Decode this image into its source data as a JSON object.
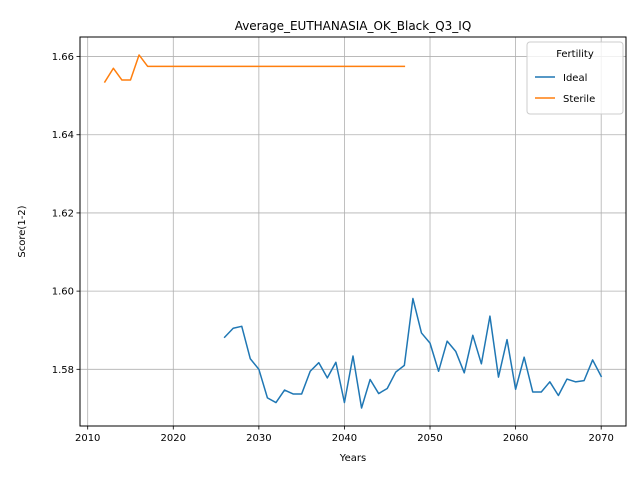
{
  "chart_data": {
    "type": "line",
    "title": "Average_EUTHANASIA_OK_Black_Q3_IQ",
    "xlabel": "Years",
    "ylabel": "Score(1-2)",
    "xlim": [
      2009.1,
      2072.9
    ],
    "ylim": [
      1.5655,
      1.665
    ],
    "xticks": [
      2010,
      2020,
      2030,
      2040,
      2050,
      2060,
      2070
    ],
    "yticks": [
      1.58,
      1.6,
      1.62,
      1.64,
      1.66
    ],
    "ytick_labels": [
      "1.58",
      "1.60",
      "1.62",
      "1.64",
      "1.66"
    ],
    "grid": true,
    "legend": {
      "title": "Fertility",
      "position": "top-right"
    },
    "series": [
      {
        "name": "Ideal",
        "color": "#1f77b4",
        "x": [
          2026,
          2027,
          2028,
          2029,
          2030,
          2031,
          2032,
          2033,
          2034,
          2035,
          2036,
          2037,
          2038,
          2039,
          2040,
          2041,
          2042,
          2043,
          2044,
          2045,
          2046,
          2047,
          2048,
          2049,
          2050,
          2051,
          2052,
          2053,
          2054,
          2055,
          2056,
          2057,
          2058,
          2059,
          2060,
          2061,
          2062,
          2063,
          2064,
          2065,
          2066,
          2067,
          2068,
          2069,
          2070
        ],
        "y": [
          1.5882,
          1.5905,
          1.591,
          1.5827,
          1.58,
          1.5727,
          1.5715,
          1.5747,
          1.5737,
          1.5737,
          1.5795,
          1.5817,
          1.5778,
          1.5818,
          1.5715,
          1.5834,
          1.5701,
          1.5774,
          1.5738,
          1.5751,
          1.5793,
          1.581,
          1.5981,
          1.5893,
          1.5867,
          1.5795,
          1.5872,
          1.5846,
          1.5791,
          1.5887,
          1.5814,
          1.5936,
          1.578,
          1.5876,
          1.5749,
          1.5831,
          1.5742,
          1.5742,
          1.5768,
          1.5733,
          1.5775,
          1.5768,
          1.5771,
          1.5824,
          1.5782
        ]
      },
      {
        "name": "Sterile",
        "color": "#ff7f0e",
        "x": [
          2012,
          2013,
          2014,
          2015,
          2016,
          2017,
          2018,
          2019,
          2020,
          2021,
          2022,
          2023,
          2024,
          2025,
          2026,
          2027,
          2028,
          2029,
          2030,
          2031,
          2032,
          2033,
          2034,
          2035,
          2036,
          2037,
          2038,
          2039,
          2040,
          2041,
          2042,
          2043,
          2044,
          2045,
          2046,
          2047
        ],
        "y": [
          1.6535,
          1.657,
          1.654,
          1.654,
          1.6604,
          1.6575,
          1.6575,
          1.6575,
          1.6575,
          1.6575,
          1.6575,
          1.6575,
          1.6575,
          1.6575,
          1.6575,
          1.6575,
          1.6575,
          1.6575,
          1.6575,
          1.6575,
          1.6575,
          1.6575,
          1.6575,
          1.6575,
          1.6575,
          1.6575,
          1.6575,
          1.6575,
          1.6575,
          1.6575,
          1.6575,
          1.6575,
          1.6575,
          1.6575,
          1.6575,
          1.6575
        ]
      }
    ]
  }
}
